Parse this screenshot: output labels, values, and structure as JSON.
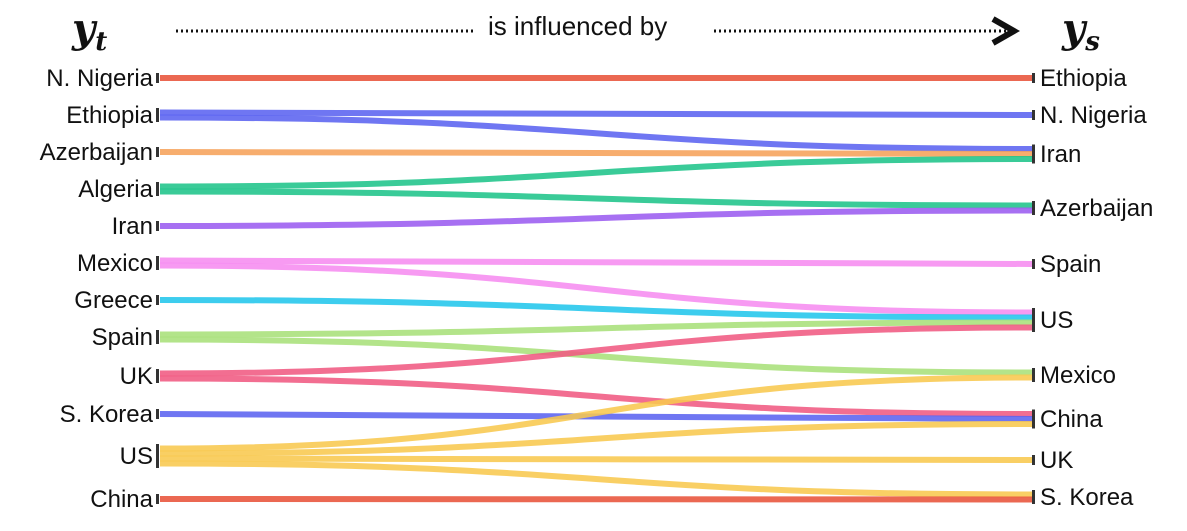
{
  "header": {
    "left_symbol": "y",
    "left_subscript": "t",
    "caption": "is influenced by",
    "right_symbol": "y",
    "right_subscript": "s"
  },
  "left_nodes": [
    "N. Nigeria",
    "Ethiopia",
    "Azerbaijan",
    "Algeria",
    "Iran",
    "Mexico",
    "Greece",
    "Spain",
    "UK",
    "S. Korea",
    "US",
    "China"
  ],
  "right_nodes": [
    "Ethiopia",
    "N. Nigeria",
    "Iran",
    "Azerbaijan",
    "Spain",
    "US",
    "Mexico",
    "China",
    "UK",
    "S. Korea"
  ],
  "colors": {
    "N. Nigeria": "#e8533a",
    "Ethiopia": "#5b63f0",
    "Azerbaijan": "#f6a25a",
    "Algeria": "#1fc48a",
    "Iran": "#9b5cf0",
    "Mexico": "#f68cf0",
    "Greece": "#22c6ec",
    "Spain": "#a9e07a",
    "UK": "#f05a82",
    "S. Korea": "#5b63f0",
    "US": "#f8c84e",
    "China": "#e8533a"
  },
  "links": [
    {
      "source": "N. Nigeria",
      "target": "Ethiopia"
    },
    {
      "source": "Ethiopia",
      "target": "N. Nigeria"
    },
    {
      "source": "Ethiopia",
      "target": "Iran"
    },
    {
      "source": "Azerbaijan",
      "target": "Iran"
    },
    {
      "source": "Algeria",
      "target": "Iran"
    },
    {
      "source": "Algeria",
      "target": "Azerbaijan"
    },
    {
      "source": "Iran",
      "target": "Azerbaijan"
    },
    {
      "source": "Mexico",
      "target": "Spain"
    },
    {
      "source": "Mexico",
      "target": "US"
    },
    {
      "source": "Greece",
      "target": "US"
    },
    {
      "source": "Spain",
      "target": "US"
    },
    {
      "source": "Spain",
      "target": "Mexico"
    },
    {
      "source": "UK",
      "target": "US"
    },
    {
      "source": "UK",
      "target": "China"
    },
    {
      "source": "S. Korea",
      "target": "China"
    },
    {
      "source": "US",
      "target": "Mexico"
    },
    {
      "source": "US",
      "target": "China"
    },
    {
      "source": "US",
      "target": "UK"
    },
    {
      "source": "US",
      "target": "S. Korea"
    },
    {
      "source": "China",
      "target": "S. Korea"
    }
  ]
}
